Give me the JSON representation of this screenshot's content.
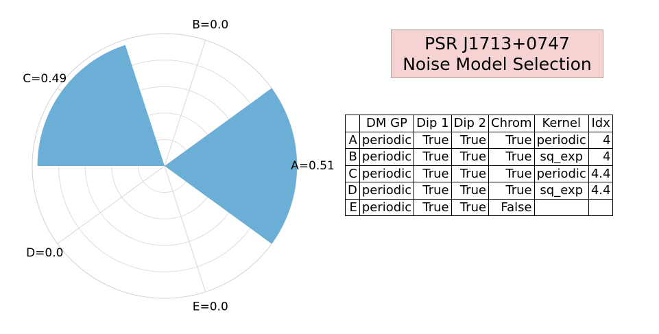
{
  "title": {
    "line1": "PSR J1713+0747",
    "line2": "Noise Model Selection"
  },
  "chart_data": {
    "type": "bar",
    "subtype": "polar-bar",
    "categories": [
      "A",
      "B",
      "C",
      "D",
      "E"
    ],
    "values": [
      0.51,
      0.0,
      0.49,
      0.0,
      0.0
    ],
    "labels": [
      "A=0.51",
      "B=0.0",
      "C=0.49",
      "D=0.0",
      "E=0.0"
    ],
    "bar_color": "#6baed6",
    "grid": true
  },
  "table": {
    "columns": [
      "",
      "DM GP",
      "Dip 1",
      "Dip 2",
      "Chrom",
      "Kernel",
      "Idx"
    ],
    "rows": [
      {
        "label": "A",
        "dm_gp": "periodic",
        "dip1": "True",
        "dip2": "True",
        "chrom": "True",
        "kernel": "periodic",
        "idx": "4"
      },
      {
        "label": "B",
        "dm_gp": "periodic",
        "dip1": "True",
        "dip2": "True",
        "chrom": "True",
        "kernel": "sq_exp",
        "idx": "4"
      },
      {
        "label": "C",
        "dm_gp": "periodic",
        "dip1": "True",
        "dip2": "True",
        "chrom": "True",
        "kernel": "periodic",
        "idx": "4.4"
      },
      {
        "label": "D",
        "dm_gp": "periodic",
        "dip1": "True",
        "dip2": "True",
        "chrom": "True",
        "kernel": "sq_exp",
        "idx": "4.4"
      },
      {
        "label": "E",
        "dm_gp": "periodic",
        "dip1": "True",
        "dip2": "True",
        "chrom": "False",
        "kernel": "",
        "idx": ""
      }
    ]
  }
}
